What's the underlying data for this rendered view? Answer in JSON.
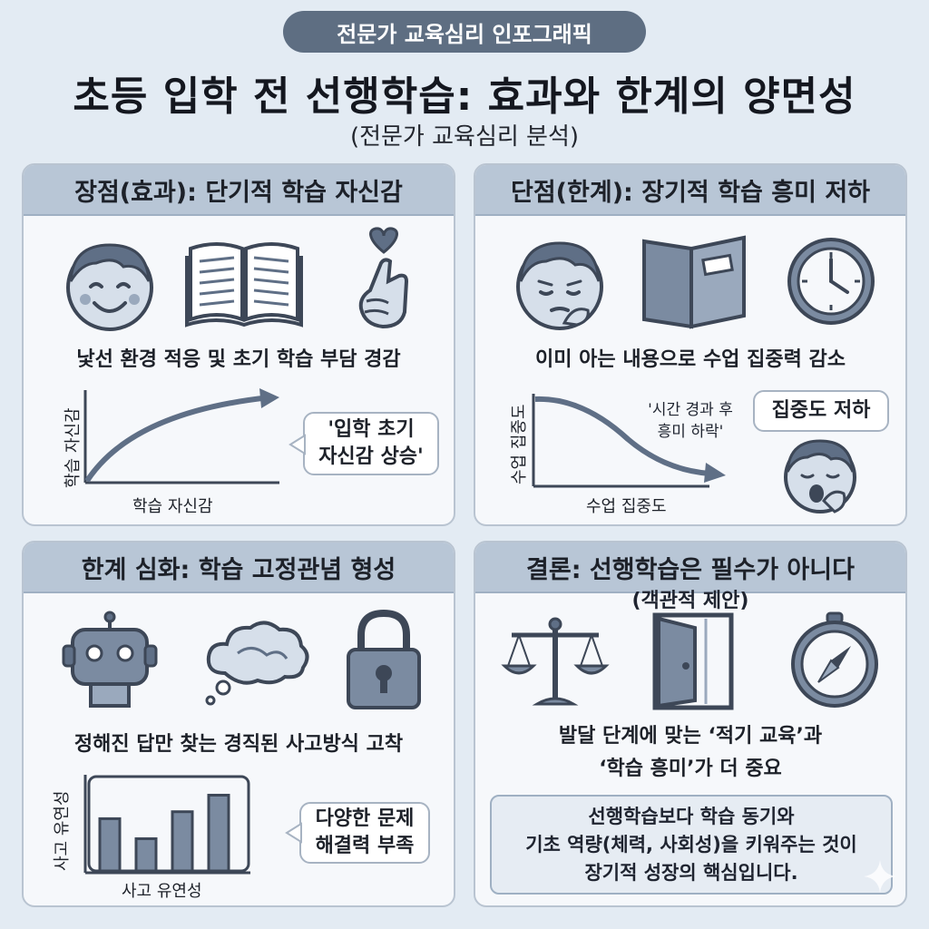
{
  "header": {
    "badge": "전문가 교육심리 인포그래픽",
    "title": "초등 입학 전 선행학습: 효과와 한계의 양면성",
    "subtitle": "(전문가 교육심리 분석)"
  },
  "panels": {
    "pros": {
      "title": "장점(효과): 단기적 학습 자신감",
      "caption": "낯선 환경 적응 및 초기 학습 부담 경감",
      "chart": {
        "ylabel": "학습 자신감",
        "xlabel": "학습 자신감"
      },
      "bubble": [
        "'입학 초기",
        "자신감 상승'"
      ],
      "icons": [
        "smiling-face-icon",
        "open-book-icon",
        "finger-heart-icon"
      ]
    },
    "cons": {
      "title": "단점(한계): 장기적 학습 흥미 저하",
      "caption": "이미 아는 내용으로 수업 집중력 감소",
      "chart": {
        "ylabel": "수업 집중도",
        "xlabel": "수업 집중도"
      },
      "annotation": [
        "'시간 경과 후",
        "흥미 하락'"
      ],
      "bubble": "집중도 저하",
      "icons": [
        "worried-face-icon",
        "closed-book-icon",
        "clock-icon",
        "yawning-face-icon"
      ]
    },
    "limits": {
      "title": "한계 심화: 학습 고정관념 형성",
      "caption": "정해진 답만 찾는 경직된 사고방식 고착",
      "chart": {
        "ylabel": "사고 유연성",
        "xlabel": "사고 유연성"
      },
      "bubble": [
        "다양한 문제",
        "해결력 부족"
      ],
      "icons": [
        "robot-icon",
        "thought-cloud-icon",
        "padlock-icon"
      ]
    },
    "conclusion": {
      "title": "결론: 선행학습은 필수가 아니다",
      "subtitle": "(객관적 제안)",
      "caption": [
        "발달 단계에 맞는 ‘적기 교육’과",
        "‘학습 흥미’가 더 중요"
      ],
      "box": [
        "선행학습보다 학습 동기와",
        "기초 역량(체력, 사회성)을 키워주는 것이",
        "장기적 성장의 핵심입니다."
      ],
      "icons": [
        "balance-scale-icon",
        "open-door-icon",
        "compass-icon"
      ]
    }
  },
  "colors": {
    "background": "#e3ebf3",
    "panel_header": "#b8c6d6",
    "icon_fill": "#7b8ba1",
    "icon_stroke": "#3d4757",
    "badge": "#5e6e82"
  },
  "chart_data": [
    {
      "type": "line",
      "trend": "increasing",
      "ylabel": "학습 자신감",
      "xlabel": "학습 자신감",
      "annotation": "'입학 초기 자신감 상승'"
    },
    {
      "type": "line",
      "trend": "decreasing",
      "ylabel": "수업 집중도",
      "xlabel": "수업 집중도",
      "annotation": "'시간 경과 후 흥미 하락'"
    },
    {
      "type": "bar",
      "ylabel": "사고 유연성",
      "xlabel": "사고 유연성",
      "values": [
        0.6,
        0.37,
        0.68,
        0.87
      ]
    }
  ]
}
